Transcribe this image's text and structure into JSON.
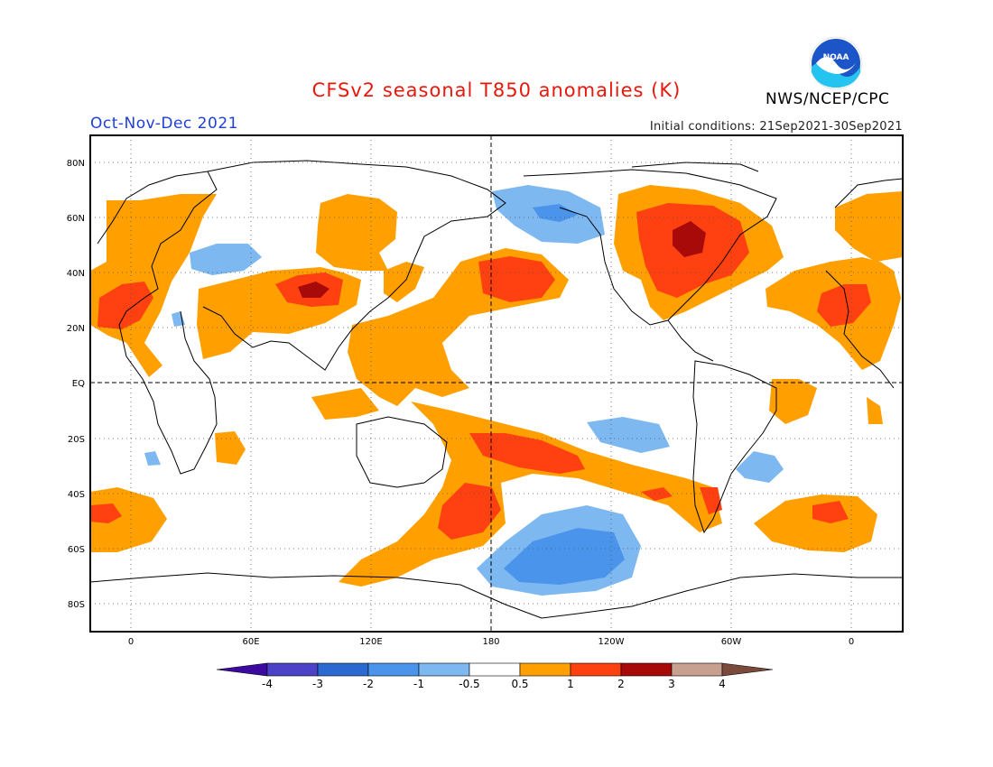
{
  "title": "CFSv2 seasonal T850 anomalies (K)",
  "period": "Oct-Nov-Dec 2021",
  "initial_conditions": "Initial conditions: 21Sep2021-30Sep2021",
  "agency": "NWS/NCEP/CPC",
  "logo_text": "NOAA",
  "lat_labels": [
    "80N",
    "60N",
    "40N",
    "20N",
    "EQ",
    "20S",
    "40S",
    "60S",
    "80S"
  ],
  "lon_labels": [
    "0",
    "60E",
    "120E",
    "180",
    "120W",
    "60W",
    "0"
  ],
  "colorbar": {
    "labels": [
      "-4",
      "-3",
      "-2",
      "-1",
      "-0.5",
      "0.5",
      "1",
      "2",
      "3",
      "4"
    ],
    "colors": [
      "#3c0aa0",
      "#4b42c8",
      "#2a6ad0",
      "#4a94ec",
      "#7eb8f0",
      "#ffffff",
      "#ffa000",
      "#ff4010",
      "#a80a0a",
      "#c8a090",
      "#7a4a3a"
    ]
  },
  "colors": {
    "anom_0_5_1": "#ffa000",
    "anom_1_2": "#ff4010",
    "anom_2_3": "#a80a0a",
    "anom_neg_0_5_1": "#7eb8f0",
    "anom_neg_1_2": "#4a94ec"
  }
}
